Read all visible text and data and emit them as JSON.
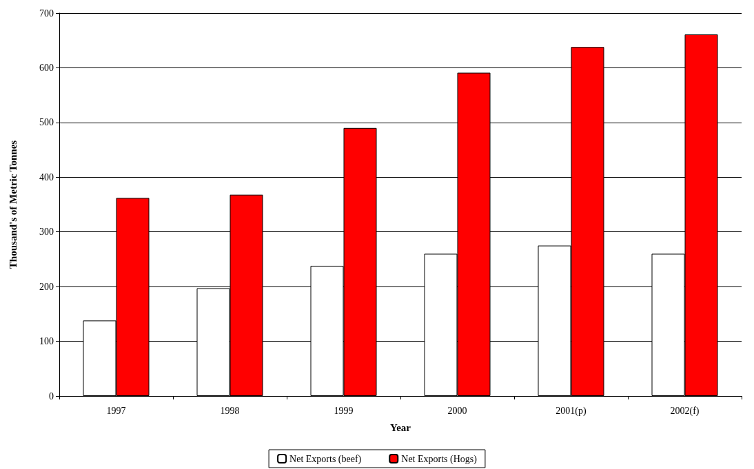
{
  "chart_data": {
    "type": "bar",
    "xlabel": "Year",
    "ylabel": "Thousand's of Metric Tonnes",
    "categories": [
      "1997",
      "1998",
      "1999",
      "2000",
      "2001(p)",
      "2002(f)"
    ],
    "series": [
      {
        "name": "Net Exports (beef)",
        "color": "#ffffff",
        "values": [
          138,
          197,
          238,
          260,
          275,
          260
        ]
      },
      {
        "name": "Net Exports (Hogs)",
        "color": "#ff0000",
        "values": [
          362,
          368,
          490,
          591,
          638,
          661
        ]
      }
    ],
    "ylim": [
      0,
      700
    ],
    "yticks": [
      0,
      100,
      200,
      300,
      400,
      500,
      600,
      700
    ],
    "grid": "y",
    "legend": "bottom"
  }
}
